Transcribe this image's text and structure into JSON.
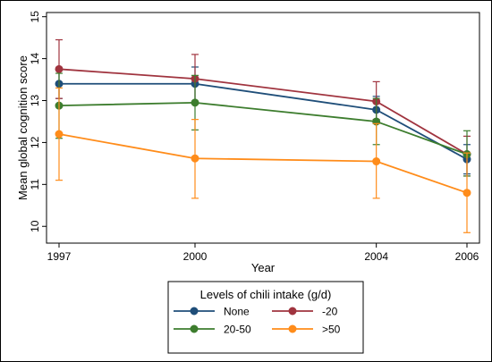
{
  "chart_data": {
    "type": "line",
    "xlabel": "Year",
    "ylabel": "Mean global cognition score",
    "x": [
      1997,
      2000,
      2004,
      2006
    ],
    "xticks": [
      "1997",
      "2000",
      "2004",
      "2006"
    ],
    "yticks": [
      "10",
      "11",
      "12",
      "13",
      "14",
      "15"
    ],
    "xlim": [
      1997,
      2006
    ],
    "ylim": [
      9.6,
      15.1
    ],
    "grid": false,
    "error_bars": true,
    "legend": {
      "title": "Levels of chili intake (g/d)",
      "placement": "bottom-center"
    },
    "series": [
      {
        "name": "None",
        "color": "#1f4e79",
        "values": [
          13.4,
          13.4,
          12.78,
          11.6
        ],
        "lower": [
          13.05,
          12.95,
          12.45,
          11.25
        ],
        "upper": [
          13.75,
          13.8,
          13.1,
          11.95
        ]
      },
      {
        "name": "-20",
        "color": "#a0343f",
        "values": [
          13.75,
          13.52,
          12.98,
          11.72
        ],
        "lower": [
          13.05,
          12.95,
          12.55,
          11.2
        ],
        "upper": [
          14.45,
          14.1,
          13.45,
          12.15
        ]
      },
      {
        "name": "20-50",
        "color": "#3d7d2e",
        "values": [
          12.88,
          12.95,
          12.5,
          11.72
        ],
        "lower": [
          12.1,
          12.3,
          11.95,
          11.2
        ],
        "upper": [
          13.65,
          13.6,
          13.05,
          12.28
        ]
      },
      {
        "name": ">50",
        "color": "#ff8c1a",
        "values": [
          12.2,
          11.62,
          11.55,
          10.8
        ],
        "lower": [
          11.1,
          10.67,
          10.67,
          9.85
        ],
        "upper": [
          13.3,
          12.55,
          12.45,
          11.75
        ]
      }
    ]
  }
}
